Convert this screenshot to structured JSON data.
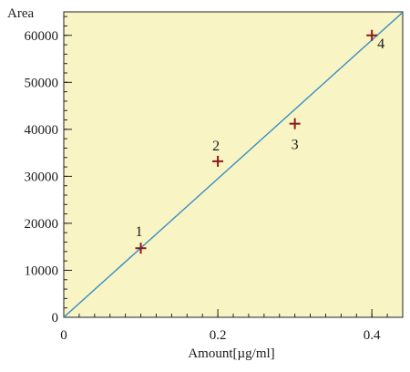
{
  "chart_data": {
    "type": "scatter",
    "xlabel": "Amount[µg/ml]",
    "ylabel": "Area",
    "xlim": [
      0,
      0.44
    ],
    "ylim": [
      0,
      65000
    ],
    "x_ticks": [
      0,
      0.2,
      0.4
    ],
    "x_tick_labels": [
      "0",
      "0.2",
      "0.4"
    ],
    "y_ticks": [
      0,
      10000,
      20000,
      30000,
      40000,
      50000,
      60000
    ],
    "y_tick_labels": [
      "0",
      "10000",
      "20000",
      "30000",
      "40000",
      "50000",
      "60000"
    ],
    "grid": false,
    "series": [
      {
        "marker": "plus",
        "color": "#8b1a1a",
        "points": [
          {
            "x": 0.1,
            "y": 14700,
            "label": "1"
          },
          {
            "x": 0.2,
            "y": 33200,
            "label": "2"
          },
          {
            "x": 0.3,
            "y": 41200,
            "label": "3"
          },
          {
            "x": 0.4,
            "y": 60000,
            "label": "4"
          }
        ]
      }
    ],
    "fit_line": {
      "color": "#3a8fc4",
      "points": [
        {
          "x": 0,
          "y": 0
        },
        {
          "x": 0.44,
          "y": 64900
        }
      ]
    },
    "plot_background": "#f8f4c4"
  }
}
